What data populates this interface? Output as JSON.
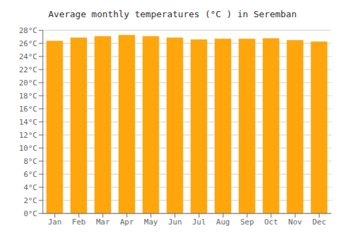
{
  "chart_data": {
    "type": "bar",
    "title": "Average monthly temperatures (°C ) in Seremban",
    "categories": [
      "Jan",
      "Feb",
      "Mar",
      "Apr",
      "May",
      "Jun",
      "Jul",
      "Aug",
      "Sep",
      "Oct",
      "Nov",
      "Dec"
    ],
    "values": [
      26.4,
      26.9,
      27.1,
      27.3,
      27.1,
      26.9,
      26.6,
      26.7,
      26.7,
      26.8,
      26.5,
      26.3
    ],
    "color": "#FFA60D",
    "ylim": [
      0,
      28
    ],
    "yticks": [
      {
        "value": 0,
        "label": "0°C"
      },
      {
        "value": 2,
        "label": "2°C"
      },
      {
        "value": 4,
        "label": "4°C"
      },
      {
        "value": 6,
        "label": "6°C"
      },
      {
        "value": 8,
        "label": "8°C"
      },
      {
        "value": 10,
        "label": "10°C"
      },
      {
        "value": 12,
        "label": "12°C"
      },
      {
        "value": 14,
        "label": "14°C"
      },
      {
        "value": 16,
        "label": "16°C"
      },
      {
        "value": 18,
        "label": "18°C"
      },
      {
        "value": 20,
        "label": "20°C"
      },
      {
        "value": 22,
        "label": "22°C"
      },
      {
        "value": 24,
        "label": "24°C"
      },
      {
        "value": 26,
        "label": "26°C"
      },
      {
        "value": 28,
        "label": "28°C"
      }
    ],
    "grid": true
  }
}
